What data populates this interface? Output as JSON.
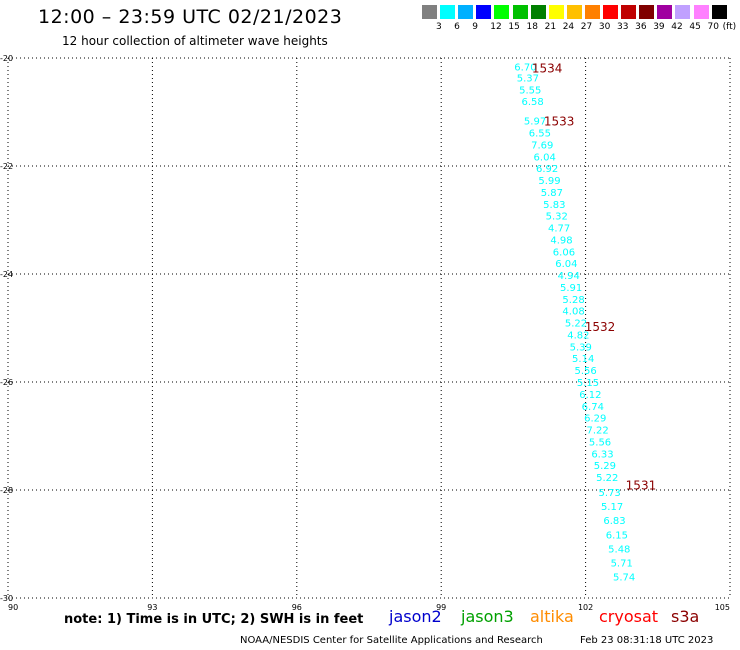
{
  "header": {
    "title": "12:00 – 23:59 UTC 02/21/2023",
    "subtitle": "12 hour collection of altimeter wave heights"
  },
  "legend_scale": {
    "colors": [
      "#808080",
      "#00ffff",
      "#00b0ff",
      "#0000ff",
      "#00ff00",
      "#00c000",
      "#008000",
      "#ffff00",
      "#ffc000",
      "#ff8000",
      "#ff0000",
      "#c00000",
      "#800000",
      "#a000a0",
      "#c0a0ff",
      "#ff80ff",
      "#000000"
    ],
    "labels": [
      "3",
      "6",
      "9",
      "12",
      "15",
      "18",
      "21",
      "24",
      "27",
      "30",
      "33",
      "36",
      "39",
      "42",
      "45",
      "70",
      "(ft)"
    ]
  },
  "footer": {
    "note": "note: 1) Time is in UTC; 2) SWH is in feet",
    "satellites": [
      {
        "name": "jason2",
        "color": "#0000cc"
      },
      {
        "name": "jason3",
        "color": "#00a000"
      },
      {
        "name": "altika",
        "color": "#ff8c00"
      },
      {
        "name": "cryosat",
        "color": "#ff0000"
      },
      {
        "name": "s3a",
        "color": "#8b0000"
      }
    ],
    "credit": "NOAA/NESDIS Center for Satellite Applications and Research",
    "timestamp": "Feb 23 08:31:18 UTC 2023"
  },
  "chart_data": {
    "type": "scatter",
    "title": "12:00 – 23:59 UTC 02/21/2023",
    "xlim": [
      90,
      105
    ],
    "ylim": [
      -30,
      -20
    ],
    "x_ticks": [
      90,
      93,
      96,
      99,
      102,
      105
    ],
    "x_tick_labels": [
      "90",
      "93",
      "96",
      "99",
      "102",
      "105"
    ],
    "y_ticks": [
      -20,
      -22,
      -24,
      -26,
      -28,
      -30
    ],
    "y_tick_labels": [
      "-20",
      "-22",
      "-24",
      "-26",
      "-28",
      "-30"
    ],
    "grid": true,
    "point_color": "#00ffff",
    "orbit_label_color": "#8b0000",
    "points": [
      {
        "x": 100.75,
        "y": -20.16,
        "v": "6.70"
      },
      {
        "x": 100.8,
        "y": -20.36,
        "v": "5.37"
      },
      {
        "x": 100.85,
        "y": -20.58,
        "v": "5.55"
      },
      {
        "x": 100.9,
        "y": -20.8,
        "v": "6.58"
      },
      {
        "x": 100.95,
        "y": -21.16,
        "v": "5.97"
      },
      {
        "x": 101.05,
        "y": -21.38,
        "v": "6.55"
      },
      {
        "x": 101.1,
        "y": -21.6,
        "v": "7.69"
      },
      {
        "x": 101.15,
        "y": -21.82,
        "v": "6.04"
      },
      {
        "x": 101.2,
        "y": -22.04,
        "v": "6.92"
      },
      {
        "x": 101.25,
        "y": -22.26,
        "v": "5.99"
      },
      {
        "x": 101.3,
        "y": -22.48,
        "v": "5.87"
      },
      {
        "x": 101.35,
        "y": -22.7,
        "v": "5.83"
      },
      {
        "x": 101.4,
        "y": -22.92,
        "v": "5.32"
      },
      {
        "x": 101.45,
        "y": -23.14,
        "v": "4.77"
      },
      {
        "x": 101.5,
        "y": -23.36,
        "v": "4.98"
      },
      {
        "x": 101.55,
        "y": -23.58,
        "v": "6.06"
      },
      {
        "x": 101.6,
        "y": -23.8,
        "v": "6.04"
      },
      {
        "x": 101.65,
        "y": -24.02,
        "v": "4.94"
      },
      {
        "x": 101.7,
        "y": -24.24,
        "v": "5.91"
      },
      {
        "x": 101.75,
        "y": -24.46,
        "v": "5.28"
      },
      {
        "x": 101.75,
        "y": -24.68,
        "v": "4.08"
      },
      {
        "x": 101.8,
        "y": -24.9,
        "v": "5.22"
      },
      {
        "x": 101.85,
        "y": -25.12,
        "v": "4.82"
      },
      {
        "x": 101.9,
        "y": -25.34,
        "v": "5.39"
      },
      {
        "x": 101.95,
        "y": -25.56,
        "v": "5.14"
      },
      {
        "x": 102.0,
        "y": -25.78,
        "v": "5.56"
      },
      {
        "x": 102.05,
        "y": -26.0,
        "v": "5.15"
      },
      {
        "x": 102.1,
        "y": -26.22,
        "v": "6.12"
      },
      {
        "x": 102.15,
        "y": -26.44,
        "v": "6.74"
      },
      {
        "x": 102.2,
        "y": -26.66,
        "v": "6.29"
      },
      {
        "x": 102.25,
        "y": -26.88,
        "v": "7.22"
      },
      {
        "x": 102.3,
        "y": -27.1,
        "v": "5.56"
      },
      {
        "x": 102.35,
        "y": -27.32,
        "v": "6.33"
      },
      {
        "x": 102.4,
        "y": -27.54,
        "v": "5.29"
      },
      {
        "x": 102.45,
        "y": -27.76,
        "v": "5.22"
      },
      {
        "x": 102.5,
        "y": -28.04,
        "v": "5.73"
      },
      {
        "x": 102.55,
        "y": -28.3,
        "v": "5.17"
      },
      {
        "x": 102.6,
        "y": -28.56,
        "v": "6.83"
      },
      {
        "x": 102.65,
        "y": -28.82,
        "v": "6.15"
      },
      {
        "x": 102.7,
        "y": -29.08,
        "v": "5.48"
      },
      {
        "x": 102.75,
        "y": -29.34,
        "v": "5.71"
      },
      {
        "x": 102.8,
        "y": -29.6,
        "v": "5.74"
      }
    ],
    "orbit_labels": [
      {
        "x": 101.2,
        "y": -20.18,
        "text": "1534"
      },
      {
        "x": 101.45,
        "y": -21.16,
        "text": "1533"
      },
      {
        "x": 102.3,
        "y": -24.96,
        "text": "1532"
      },
      {
        "x": 103.15,
        "y": -27.9,
        "text": "1531"
      }
    ]
  }
}
